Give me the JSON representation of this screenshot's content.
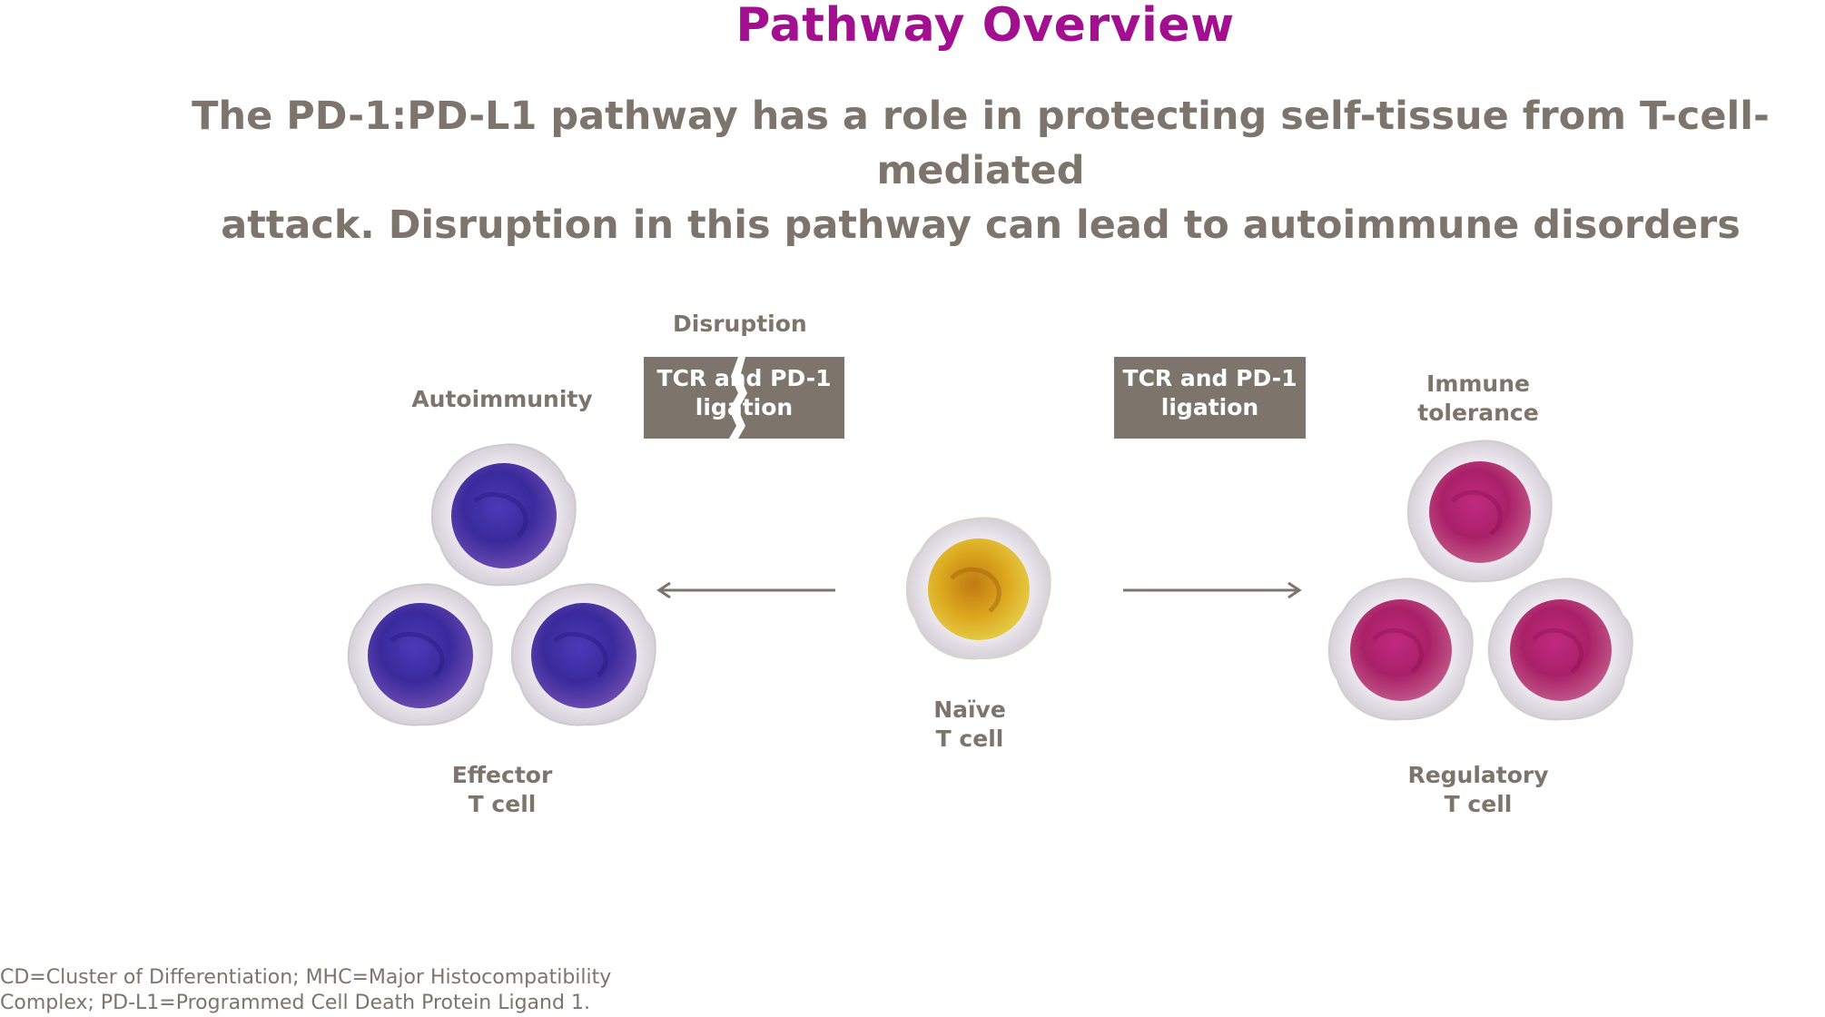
{
  "title": "Pathway Overview",
  "subtitle": {
    "line1": "The PD-1:PD-L1 pathway has a role in protecting self-tissue from T-cell-mediated",
    "line2": "attack. Disruption in this pathway can lead to autoimmune disorders"
  },
  "left": {
    "disruption_label": "Disruption",
    "box_line1": "TCR and PD-1",
    "box_line2": "ligation",
    "outcome_label": "Autoimmunity",
    "cell_label_line1": "Effector",
    "cell_label_line2": "T cell"
  },
  "center": {
    "cell_label_line1": "Naïve",
    "cell_label_line2": "T cell"
  },
  "right": {
    "box_line1": "TCR and PD-1",
    "box_line2": "ligation",
    "outcome_line1": "Immune",
    "outcome_line2": "tolerance",
    "cell_label_line1": "Regulatory",
    "cell_label_line2": "T cell"
  },
  "footnote": {
    "line1": "CD=Cluster of Differentiation; MHC=Major Histocompatibility",
    "line2": "Complex; PD-L1=Programmed Cell Death Protein Ligand 1."
  },
  "colors": {
    "title": "#a3108f",
    "text": "#7d746c",
    "box": "#7d746c",
    "effector": "#3b2a9e",
    "naive": "#d9a21a",
    "regulatory": "#b3246f"
  }
}
